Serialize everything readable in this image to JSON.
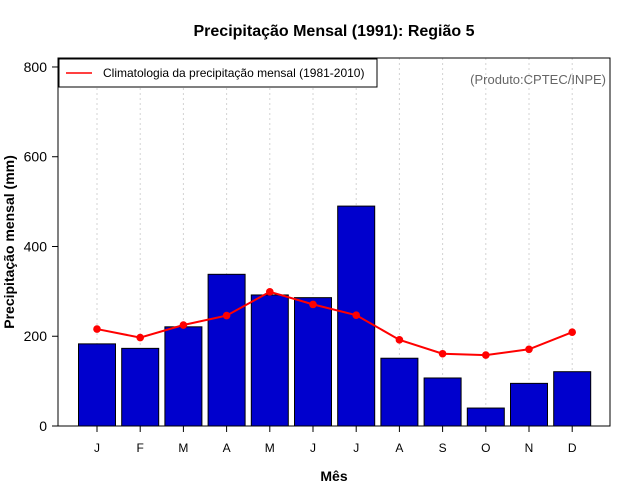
{
  "chart_data": {
    "type": "bar",
    "title": "Precipitação Mensal (1991): Região 5",
    "xlabel": "Mês",
    "ylabel": "Precipitação mensal (mm)",
    "ylim": [
      0,
      820
    ],
    "yticks": [
      0,
      200,
      400,
      600,
      800
    ],
    "categories": [
      "J",
      "F",
      "M",
      "A",
      "M",
      "J",
      "J",
      "A",
      "S",
      "O",
      "N",
      "D"
    ],
    "series": [
      {
        "name": "Precipitação mensal (1991)",
        "type": "bar",
        "color": "#0000CD",
        "values": [
          183,
          173,
          221,
          338,
          292,
          286,
          490,
          151,
          107,
          40,
          95,
          121
        ]
      },
      {
        "name": "Climatologia da precipitação mensal (1981-2010)",
        "type": "line",
        "color": "#FF0000",
        "values": [
          216,
          197,
          225,
          246,
          299,
          271,
          247,
          192,
          161,
          158,
          171,
          209
        ]
      }
    ],
    "legend": {
      "position": "top-left",
      "entries": [
        "Climatologia da precipitação mensal (1981-2010)"
      ]
    },
    "annotation": "(Produto:CPTEC/INPE)",
    "grid": "vertical-dotted"
  }
}
